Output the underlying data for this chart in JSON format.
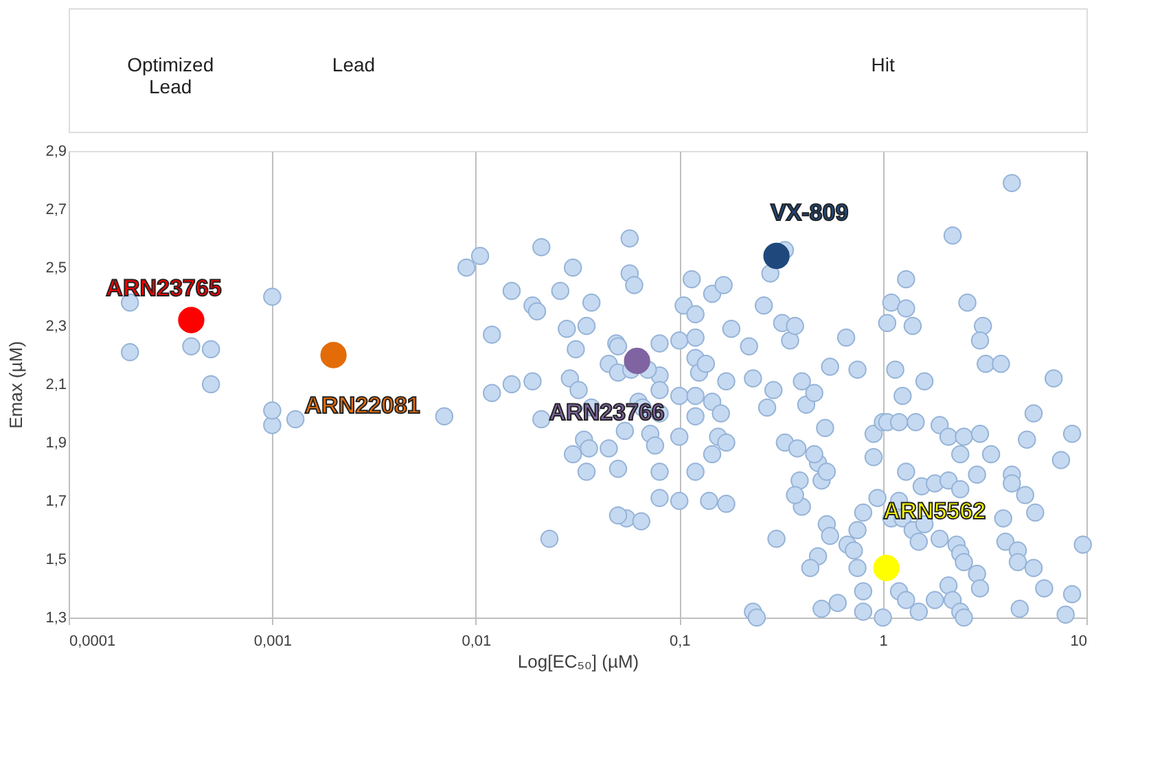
{
  "chart_data": {
    "type": "scatter",
    "xlabel": "Log[EC₅₀] (µM)",
    "ylabel": "Emax (µM)",
    "log": "x",
    "xlim": [
      0.0001,
      10
    ],
    "ylim": [
      1.3,
      2.9
    ],
    "xticks": [
      {
        "value": 0.0001,
        "label": "0,0001"
      },
      {
        "value": 0.001,
        "label": "0,001"
      },
      {
        "value": 0.01,
        "label": "0,01"
      },
      {
        "value": 0.1,
        "label": "0,1"
      },
      1,
      10
    ],
    "yticks": [
      {
        "value": 1.3,
        "label": "1,3"
      },
      {
        "value": 1.5,
        "label": "1,5"
      },
      {
        "value": 1.7,
        "label": "1,7"
      },
      {
        "value": 1.9,
        "label": "1,9"
      },
      {
        "value": 2.1,
        "label": "2,1"
      },
      {
        "value": 2.3,
        "label": "2,3"
      },
      {
        "value": 2.5,
        "label": "2,5"
      },
      {
        "value": 2.7,
        "label": "2,7"
      },
      {
        "value": 2.9,
        "label": "2,9"
      }
    ],
    "grid": "x",
    "marker": "circle",
    "annotations": [
      "Optimized Lead",
      "Lead",
      "Hit"
    ],
    "series": [
      {
        "color": "#c5d9f1",
        "x": [
          0.0002,
          0.0002,
          0.0004,
          0.0005,
          0.0005,
          0.001,
          0.001,
          0.001,
          0.0013,
          0.007,
          0.009,
          0.0105,
          0.021,
          0.012,
          0.012,
          0.015,
          0.015,
          0.019,
          0.019,
          0.02,
          0.021,
          0.023,
          0.026,
          0.028,
          0.029,
          0.03,
          0.031,
          0.032,
          0.035,
          0.037,
          0.037,
          0.03,
          0.034,
          0.035,
          0.036,
          0.045,
          0.05,
          0.057,
          0.057,
          0.06,
          0.045,
          0.049,
          0.05,
          0.05,
          0.058,
          0.063,
          0.066,
          0.054,
          0.072,
          0.08,
          0.08,
          0.08,
          0.08,
          0.076,
          0.08,
          0.1,
          0.1,
          0.1,
          0.1,
          0.08,
          0.055,
          0.065,
          0.05,
          0.07,
          0.105,
          0.115,
          0.12,
          0.12,
          0.12,
          0.125,
          0.12,
          0.12,
          0.12,
          0.135,
          0.145,
          0.155,
          0.145,
          0.14,
          0.17,
          0.145,
          0.165,
          0.18,
          0.17,
          0.16,
          0.17,
          0.22,
          0.23,
          0.29,
          0.27,
          0.26,
          0.33,
          0.28,
          0.32,
          0.35,
          0.37,
          0.4,
          0.42,
          0.46,
          0.52,
          0.55,
          0.66,
          0.48,
          0.33,
          0.38,
          0.46,
          0.39,
          0.5,
          0.4,
          0.37,
          0.53,
          0.53,
          0.55,
          0.48,
          0.44,
          0.75,
          0.67,
          0.72,
          0.94,
          0.8,
          1.1,
          0.8,
          0.75,
          0.6,
          0.5,
          0.8,
          0.23,
          0.24,
          0.3,
          0.9,
          0.9,
          1.0,
          0.75,
          4.3,
          2.2,
          1.3,
          1.1,
          1.3,
          1.05,
          1.4,
          2.6,
          3.1,
          3.0,
          3.2,
          3.8,
          6.9,
          1.15,
          1.6,
          1.25,
          1.05,
          1.2,
          1.45,
          1.9,
          2.1,
          2.5,
          3.0,
          5.5,
          5.1,
          8.5,
          7.5,
          3.4,
          2.4,
          1.3,
          1.55,
          1.8,
          2.1,
          2.4,
          2.9,
          4.3,
          4.3,
          5.0,
          5.6,
          1.2,
          1.25,
          1.4,
          1.6,
          1.5,
          1.9,
          2.3,
          2.4,
          2.5,
          3.9,
          4.0,
          4.6,
          4.6,
          5.5,
          6.2,
          9.6,
          8.5,
          7.9,
          2.9,
          3.0,
          2.1,
          2.2,
          1.8,
          1.5,
          2.4,
          4.7,
          1.2,
          1.3,
          1.0,
          2.5
        ],
        "values": [
          2.38,
          2.21,
          2.23,
          2.22,
          2.1,
          2.4,
          1.96,
          2.01,
          1.98,
          1.99,
          2.5,
          2.54,
          2.57,
          2.27,
          2.07,
          2.42,
          2.1,
          2.11,
          2.37,
          2.35,
          1.98,
          1.57,
          2.42,
          2.29,
          2.12,
          2.5,
          2.22,
          2.08,
          2.3,
          2.38,
          2.02,
          1.86,
          1.91,
          1.8,
          1.88,
          1.88,
          1.81,
          2.6,
          2.48,
          2.44,
          2.17,
          2.24,
          2.14,
          2.23,
          2.15,
          2.04,
          2.02,
          1.94,
          1.93,
          2.24,
          2.13,
          2.08,
          2.0,
          1.89,
          1.8,
          1.92,
          2.06,
          2.25,
          1.7,
          1.71,
          1.64,
          1.63,
          1.65,
          2.15,
          2.37,
          2.46,
          2.34,
          2.26,
          2.19,
          2.14,
          2.06,
          1.99,
          1.8,
          2.17,
          2.04,
          1.92,
          1.86,
          1.7,
          1.69,
          2.41,
          2.44,
          2.29,
          2.11,
          2.0,
          1.9,
          2.23,
          2.12,
          2.08,
          2.02,
          2.37,
          2.56,
          2.48,
          2.31,
          2.25,
          2.3,
          2.11,
          2.03,
          2.07,
          1.95,
          2.16,
          2.26,
          1.83,
          1.9,
          1.88,
          1.86,
          1.77,
          1.77,
          1.68,
          1.72,
          1.8,
          1.62,
          1.58,
          1.51,
          1.47,
          1.6,
          1.55,
          1.53,
          1.71,
          1.66,
          1.64,
          1.39,
          1.47,
          1.35,
          1.33,
          1.32,
          1.32,
          1.3,
          1.57,
          1.85,
          1.93,
          1.97,
          2.15,
          2.79,
          2.61,
          2.46,
          2.38,
          2.36,
          2.31,
          2.3,
          2.38,
          2.3,
          2.25,
          2.17,
          2.17,
          2.12,
          2.15,
          2.11,
          2.06,
          1.97,
          1.97,
          1.97,
          1.96,
          1.92,
          1.92,
          1.93,
          2.0,
          1.91,
          1.93,
          1.84,
          1.86,
          1.86,
          1.8,
          1.75,
          1.76,
          1.77,
          1.74,
          1.79,
          1.79,
          1.76,
          1.72,
          1.66,
          1.7,
          1.64,
          1.6,
          1.62,
          1.56,
          1.57,
          1.55,
          1.52,
          1.49,
          1.64,
          1.56,
          1.53,
          1.49,
          1.47,
          1.4,
          1.55,
          1.38,
          1.31,
          1.45,
          1.4,
          1.41,
          1.36,
          1.36,
          1.32,
          1.32,
          1.33,
          1.39,
          1.36,
          1.3,
          1.3
        ]
      },
      {
        "name": "ARN23765",
        "color": "#ff0000",
        "x": [
          0.0004
        ],
        "values": [
          2.32
        ]
      },
      {
        "name": "ARN22081",
        "color": "#e36c09",
        "x": [
          0.002
        ],
        "values": [
          2.2
        ]
      },
      {
        "name": "ARN23766",
        "color": "#8064a2",
        "x": [
          0.062
        ],
        "values": [
          2.18
        ]
      },
      {
        "name": "VX-809",
        "color": "#1f497d",
        "x": [
          0.3
        ],
        "values": [
          2.54
        ]
      },
      {
        "name": "ARN5562",
        "color": "#ffff00",
        "x": [
          1.04
        ],
        "values": [
          1.47
        ]
      }
    ]
  }
}
